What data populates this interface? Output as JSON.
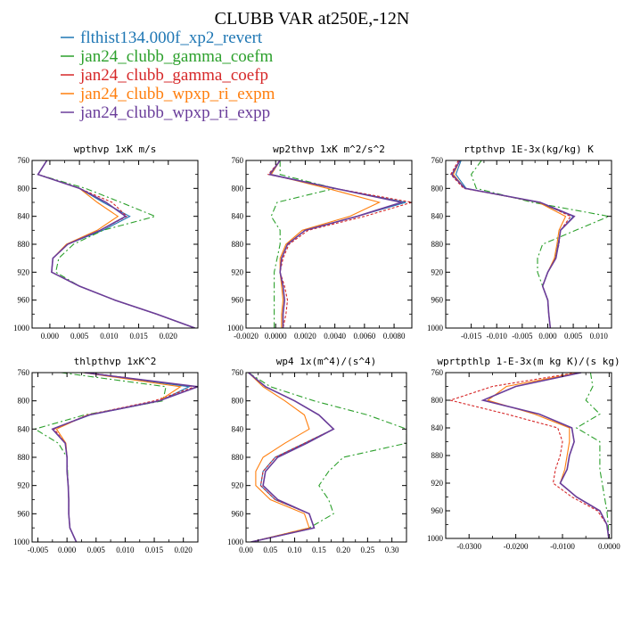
{
  "figure_title": "CLUBB VAR at250E,-12N",
  "legend": [
    {
      "label": "flthist134.000f_xp2_revert",
      "color": "#1f77b4"
    },
    {
      "label": "jan24_clubb_gamma_coefm",
      "color": "#2ca02c"
    },
    {
      "label": "jan24_clubb_gamma_coefp",
      "color": "#d62728"
    },
    {
      "label": "jan24_clubb_wpxp_ri_expm",
      "color": "#ff7f0e"
    },
    {
      "label": "jan24_clubb_wpxp_ri_expp",
      "color": "#6a3d9a"
    }
  ],
  "chart_data": [
    {
      "type": "line",
      "title": "wpthvp  1xK m/s",
      "y_levels": [
        760,
        780,
        800,
        820,
        840,
        860,
        880,
        900,
        920,
        940,
        960,
        980,
        1000
      ],
      "ylim": [
        1000,
        760
      ],
      "yticks": [
        760,
        800,
        840,
        880,
        920,
        960,
        1000
      ],
      "ytick_labels": [
        "760",
        "800",
        "840",
        "880",
        "920",
        "960",
        "1000"
      ],
      "xlim": [
        -0.003,
        0.025
      ],
      "xticks": [
        0,
        0.005,
        0.01,
        0.015,
        0.02
      ],
      "xtick_labels": [
        "0.000",
        "0.005",
        "0.010",
        "0.015",
        "0.020"
      ],
      "series": [
        {
          "values": [
            -0.0005,
            -0.002,
            0.005,
            0.009,
            0.0135,
            0.009,
            0.003,
            0.0005,
            0.0003,
            0.005,
            0.011,
            0.018,
            0.0245
          ]
        },
        {
          "values": [
            -0.0005,
            -0.002,
            0.006,
            0.012,
            0.0178,
            0.009,
            0.004,
            0.0015,
            0.001,
            0.005,
            0.011,
            0.018,
            0.0245
          ]
        },
        {
          "values": [
            -0.0005,
            -0.002,
            0.005,
            0.0105,
            0.013,
            0.0085,
            0.003,
            0.0005,
            0.0003,
            0.005,
            0.011,
            0.018,
            0.0245
          ]
        },
        {
          "values": [
            -0.0005,
            -0.002,
            0.005,
            0.008,
            0.0115,
            0.008,
            0.0028,
            0.0005,
            0.0003,
            0.005,
            0.011,
            0.018,
            0.0245
          ]
        },
        {
          "values": [
            -0.0005,
            -0.002,
            0.005,
            0.0095,
            0.0128,
            0.0085,
            0.003,
            0.0005,
            0.0003,
            0.005,
            0.011,
            0.018,
            0.0245
          ]
        }
      ]
    },
    {
      "type": "line",
      "title": "wp2thvp  1xK m^2/s^2",
      "y_levels": [
        760,
        780,
        800,
        820,
        840,
        860,
        880,
        900,
        920,
        940,
        960,
        980,
        1000
      ],
      "ylim": [
        1000,
        760
      ],
      "yticks": [
        760,
        800,
        840,
        880,
        920,
        960,
        1000
      ],
      "ytick_labels": [
        "760",
        "800",
        "840",
        "880",
        "920",
        "960",
        "1000"
      ],
      "xlim": [
        -0.002,
        0.0092
      ],
      "xticks": [
        -0.002,
        0,
        0.002,
        0.004,
        0.006,
        0.008
      ],
      "xtick_labels": [
        "-0.0020",
        "0.0000",
        "0.0020",
        "0.0040",
        "0.0060",
        "0.0080"
      ],
      "series": [
        {
          "values": [
            0.0003,
            -0.0003,
            0.004,
            0.0088,
            0.0055,
            0.002,
            0.0008,
            0.0004,
            0.0003,
            0.0005,
            0.0006,
            0.0005,
            0.0005
          ]
        },
        {
          "values": [
            0.0003,
            0.0003,
            0.004,
            0.0001,
            -0.0003,
            0.0003,
            0.0003,
            0.0001,
            -0.0001,
            -0.0001,
            -0.0001,
            -0.0001,
            -0.0001
          ]
        },
        {
          "values": [
            0.0003,
            -0.0005,
            0.004,
            0.0092,
            0.006,
            0.0022,
            0.0009,
            0.0005,
            0.0003,
            0.0006,
            0.0008,
            0.0007,
            0.0005
          ]
        },
        {
          "values": [
            0.0003,
            -0.0003,
            0.0035,
            0.007,
            0.005,
            0.0018,
            0.0007,
            0.0003,
            0.0003,
            0.0004,
            0.0005,
            0.0004,
            0.0004
          ]
        },
        {
          "values": [
            0.0003,
            -0.0004,
            0.004,
            0.0085,
            0.0055,
            0.002,
            0.0008,
            0.0004,
            0.0003,
            0.0005,
            0.0006,
            0.0005,
            0.0005
          ]
        }
      ]
    },
    {
      "type": "line",
      "title": "rtpthvp  1E-3x(kg/kg) K",
      "y_levels": [
        760,
        780,
        800,
        820,
        840,
        860,
        880,
        900,
        920,
        940,
        960,
        980,
        1000
      ],
      "ylim": [
        1000,
        760
      ],
      "yticks": [
        760,
        800,
        840,
        880,
        920,
        960,
        1000
      ],
      "ytick_labels": [
        "760",
        "800",
        "840",
        "880",
        "920",
        "960",
        "1000"
      ],
      "xlim": [
        -0.02,
        0.0125
      ],
      "xticks": [
        -0.015,
        -0.01,
        -0.005,
        0,
        0.005,
        0.01
      ],
      "xtick_labels": [
        "-0.015",
        "-0.010",
        "-0.005",
        "0.000",
        "0.005",
        "0.010"
      ],
      "series": [
        {
          "values": [
            -0.017,
            -0.018,
            -0.016,
            -0.002,
            0.005,
            0.0025,
            0.002,
            0.0015,
            0.0,
            -0.001,
            0.0,
            0.0002,
            0.0005
          ]
        },
        {
          "values": [
            -0.013,
            -0.015,
            -0.014,
            -0.003,
            0.012,
            0.0055,
            -0.001,
            -0.002,
            -0.002,
            -0.001,
            0.0,
            0.0002,
            0.0005
          ]
        },
        {
          "values": [
            -0.0175,
            -0.019,
            -0.0165,
            -0.0015,
            0.0045,
            0.0025,
            0.0022,
            0.0015,
            0.0,
            -0.001,
            0.0,
            0.0002,
            0.0005
          ]
        },
        {
          "values": [
            -0.0172,
            -0.0185,
            -0.0162,
            -0.0018,
            0.0035,
            0.0022,
            0.0018,
            0.0013,
            0.0,
            -0.001,
            0.0,
            0.0002,
            0.0005
          ]
        },
        {
          "values": [
            -0.0172,
            -0.0188,
            -0.0162,
            -0.0015,
            0.0052,
            0.0025,
            0.0021,
            0.0016,
            0.0,
            -0.001,
            0.0,
            0.0002,
            0.0005
          ]
        }
      ]
    },
    {
      "type": "line",
      "title": "thlpthvp  1xK^2",
      "y_levels": [
        760,
        780,
        800,
        820,
        840,
        860,
        880,
        900,
        920,
        940,
        960,
        980,
        1000
      ],
      "ylim": [
        1000,
        760
      ],
      "yticks": [
        760,
        800,
        840,
        880,
        920,
        960,
        1000
      ],
      "ytick_labels": [
        "760",
        "800",
        "840",
        "880",
        "920",
        "960",
        "1000"
      ],
      "xlim": [
        -0.006,
        0.0225
      ],
      "xticks": [
        -0.005,
        0,
        0.005,
        0.01,
        0.015,
        0.02
      ],
      "xtick_labels": [
        "-0.005",
        "0.000",
        "0.005",
        "0.010",
        "0.015",
        "0.020"
      ],
      "series": [
        {
          "values": [
            0.003,
            0.021,
            0.016,
            0.004,
            -0.0025,
            -0.0003,
            0.0,
            0.0,
            0.0002,
            0.0003,
            0.0003,
            0.0005,
            0.0016
          ]
        },
        {
          "values": [
            -0.001,
            0.017,
            0.0165,
            0.003,
            -0.0055,
            -0.0015,
            0.0,
            0.0001,
            0.0002,
            0.0003,
            0.0003,
            0.0005,
            0.0016
          ]
        },
        {
          "values": [
            0.0035,
            0.022,
            0.015,
            0.0035,
            -0.0022,
            -0.0003,
            0.0,
            0.0,
            0.0002,
            0.0003,
            0.0003,
            0.0005,
            0.0016
          ]
        },
        {
          "values": [
            0.0028,
            0.0195,
            0.0158,
            0.0035,
            -0.0018,
            -0.0002,
            0.0,
            0.0,
            0.0002,
            0.0003,
            0.0003,
            0.0005,
            0.0016
          ]
        },
        {
          "values": [
            0.003,
            0.0225,
            0.0158,
            0.0038,
            -0.0025,
            -0.0003,
            0.0,
            0.0,
            0.0002,
            0.0003,
            0.0003,
            0.0005,
            0.0016
          ]
        }
      ]
    },
    {
      "type": "line",
      "title": "wp4  1x(m^4)/(s^4)",
      "y_levels": [
        760,
        780,
        800,
        820,
        840,
        860,
        880,
        900,
        920,
        940,
        960,
        980,
        1000
      ],
      "ylim": [
        1000,
        760
      ],
      "yticks": [
        760,
        800,
        840,
        880,
        920,
        960,
        1000
      ],
      "ytick_labels": [
        "760",
        "800",
        "840",
        "880",
        "920",
        "960",
        "1000"
      ],
      "xlim": [
        0,
        0.33
      ],
      "xticks": [
        0,
        0.05,
        0.1,
        0.15,
        0.2,
        0.25,
        0.3
      ],
      "xtick_labels": [
        "0.00",
        "0.05",
        "0.10",
        "0.15",
        "0.20",
        "0.25",
        "0.30"
      ],
      "series": [
        {
          "values": [
            0.005,
            0.04,
            0.1,
            0.15,
            0.18,
            0.12,
            0.06,
            0.035,
            0.03,
            0.06,
            0.13,
            0.14,
            0.01
          ]
        },
        {
          "values": [
            0.005,
            0.05,
            0.14,
            0.25,
            0.33,
            0.33,
            0.2,
            0.17,
            0.15,
            0.17,
            0.18,
            0.13,
            0.01
          ]
        },
        {
          "values": [
            0.005,
            0.04,
            0.1,
            0.15,
            0.18,
            0.12,
            0.06,
            0.035,
            0.03,
            0.06,
            0.13,
            0.14,
            0.01
          ]
        },
        {
          "values": [
            0.005,
            0.035,
            0.08,
            0.12,
            0.13,
            0.08,
            0.035,
            0.02,
            0.02,
            0.05,
            0.12,
            0.13,
            0.01
          ]
        },
        {
          "values": [
            0.005,
            0.04,
            0.1,
            0.15,
            0.18,
            0.125,
            0.065,
            0.04,
            0.035,
            0.065,
            0.13,
            0.14,
            0.01
          ]
        }
      ]
    },
    {
      "type": "line",
      "title": "wprtpthlp  1-E-3x(m kg K)/(s kg)",
      "y_levels": [
        760,
        780,
        800,
        820,
        840,
        860,
        880,
        900,
        920,
        940,
        960,
        980,
        1000
      ],
      "ylim": [
        1000,
        760
      ],
      "yticks": [
        760,
        800,
        840,
        880,
        920,
        960,
        1000
      ],
      "ytick_labels": [
        "760",
        "800",
        "840",
        "880",
        "920",
        "960",
        "1000"
      ],
      "xlim": [
        -0.035,
        0.0005
      ],
      "xticks": [
        -0.03,
        -0.02,
        -0.01,
        0
      ],
      "xtick_labels": [
        "-0.0300",
        "-0.0200",
        "-0.0100",
        "0.0000"
      ],
      "series": [
        {
          "values": [
            -0.006,
            -0.02,
            -0.027,
            -0.015,
            -0.008,
            -0.0075,
            -0.0085,
            -0.009,
            -0.0105,
            -0.007,
            -0.002,
            -0.0005,
            -0.0001
          ]
        },
        {
          "values": [
            -0.004,
            -0.0035,
            -0.005,
            -0.002,
            -0.007,
            -0.002,
            -0.002,
            -0.002,
            -0.0015,
            -0.001,
            -0.0005,
            -0.0002,
            -0.0001
          ]
        },
        {
          "values": [
            -0.007,
            -0.025,
            -0.034,
            -0.022,
            -0.011,
            -0.01,
            -0.0105,
            -0.0115,
            -0.012,
            -0.008,
            -0.0025,
            -0.0005,
            -0.0001
          ]
        },
        {
          "values": [
            -0.0065,
            -0.022,
            -0.026,
            -0.016,
            -0.0085,
            -0.0085,
            -0.009,
            -0.0095,
            -0.0105,
            -0.007,
            -0.002,
            -0.0005,
            -0.0001
          ]
        },
        {
          "values": [
            -0.006,
            -0.02,
            -0.027,
            -0.015,
            -0.008,
            -0.0075,
            -0.0085,
            -0.009,
            -0.0105,
            -0.007,
            -0.002,
            -0.0005,
            -0.0001
          ]
        }
      ]
    }
  ]
}
